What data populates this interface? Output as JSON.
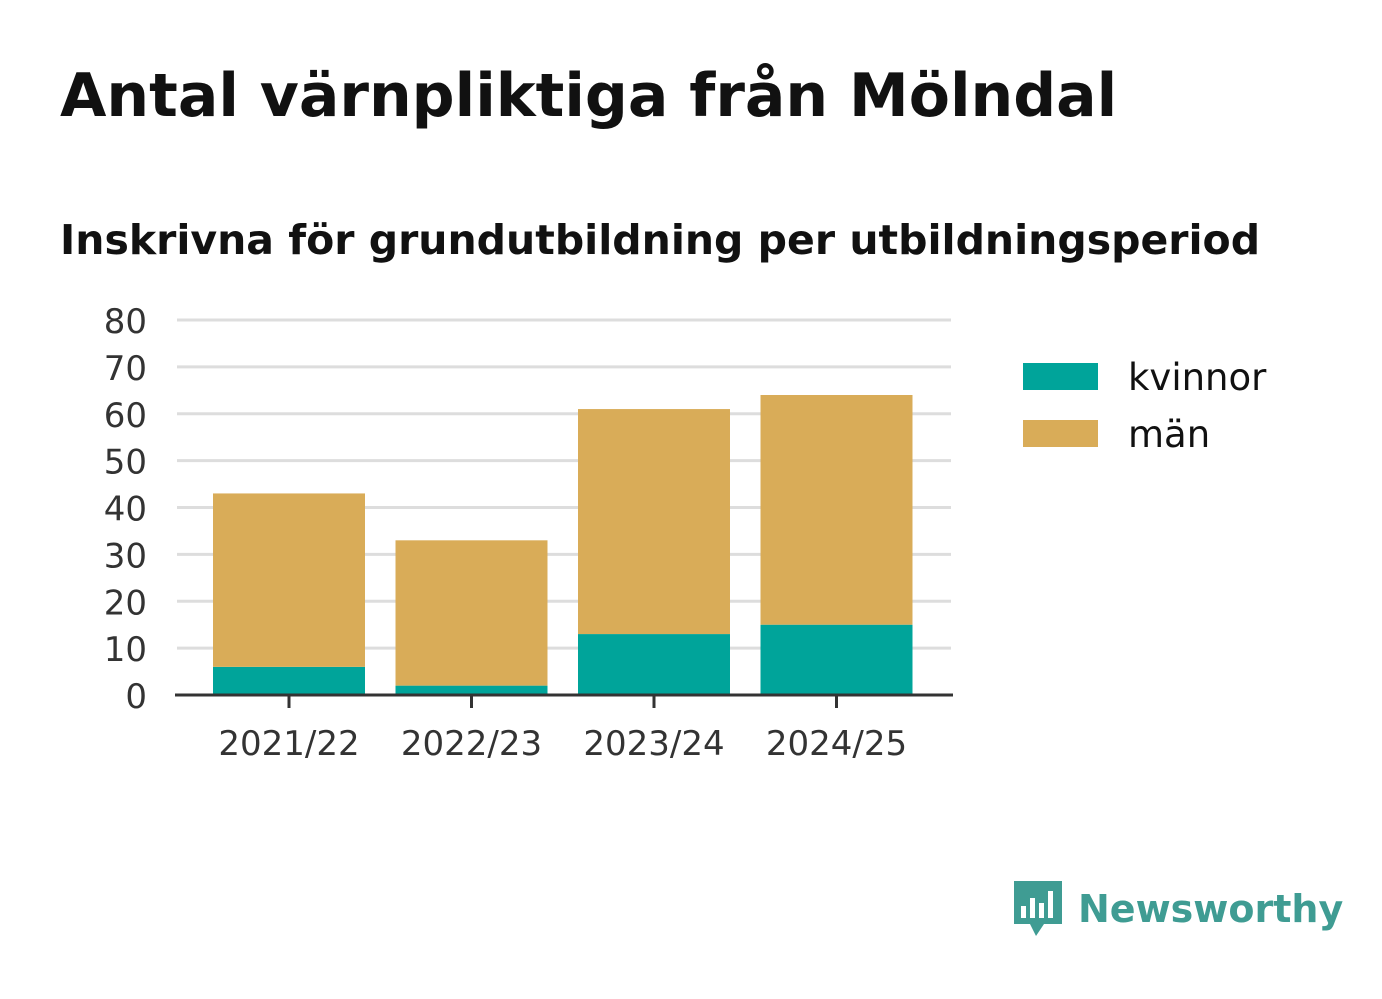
{
  "title": "Antal värnpliktiga från Mölndal",
  "subtitle": "Inskrivna för grundutbildning per utbildningsperiod",
  "brand": {
    "name": "Newsworthy",
    "icon": "newsworthy-logo-icon",
    "color": "#3f9c93"
  },
  "colors": {
    "kvinnor": "#00a49a",
    "man": "#d9ac58",
    "grid": "#dddddd",
    "axis": "#333333",
    "text": "#111111",
    "tick_text": "#333333"
  },
  "chart_data": {
    "type": "bar",
    "stacked": true,
    "title": "Antal värnpliktiga från Mölndal",
    "subtitle": "Inskrivna för grundutbildning per utbildningsperiod",
    "xlabel": "",
    "ylabel": "",
    "categories": [
      "2021/22",
      "2022/23",
      "2023/24",
      "2024/25"
    ],
    "series": [
      {
        "name": "kvinnor",
        "values": [
          6,
          2,
          13,
          15
        ]
      },
      {
        "name": "män",
        "values": [
          37,
          31,
          48,
          49
        ]
      }
    ],
    "ylim": [
      0,
      80
    ],
    "yticks": [
      "0",
      "10",
      "20",
      "30",
      "40",
      "50",
      "60",
      "70",
      "80"
    ],
    "grid": true,
    "legend_position": "right"
  }
}
